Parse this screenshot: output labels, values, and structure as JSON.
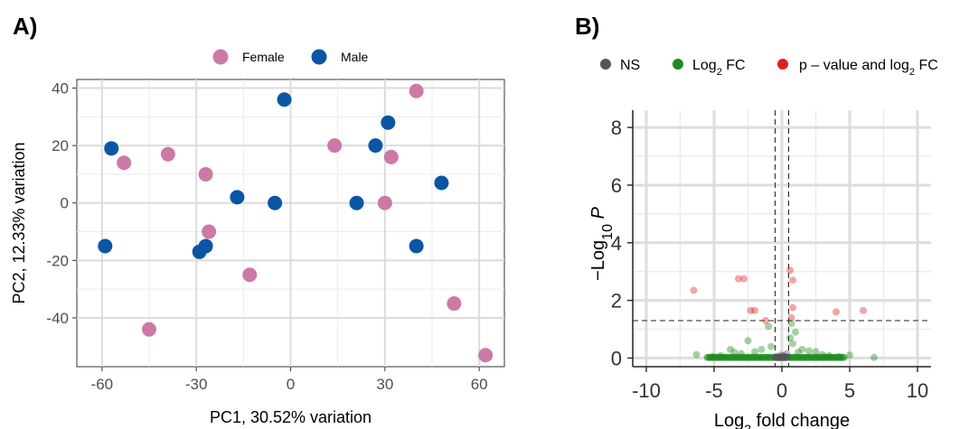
{
  "chart_data": [
    {
      "panel": "A)",
      "type": "scatter",
      "xlabel": "PC1, 30.52% variation",
      "ylabel": "PC2, 12.33% variation",
      "xlim": [
        -68,
        68
      ],
      "ylim": [
        -57,
        43
      ],
      "xticks": [
        -60,
        -30,
        0,
        30,
        60
      ],
      "yticks": [
        40,
        20,
        0,
        -20,
        -40
      ],
      "grid": true,
      "legend_position": "top",
      "series": [
        {
          "name": "Female",
          "color": "#CC79A7",
          "points": [
            [
              -53,
              14
            ],
            [
              -39,
              17
            ],
            [
              -27,
              10
            ],
            [
              -26,
              -10
            ],
            [
              -45,
              -44
            ],
            [
              -13,
              -25
            ],
            [
              14,
              20
            ],
            [
              30,
              0
            ],
            [
              32,
              16
            ],
            [
              40,
              39
            ],
            [
              52,
              -35
            ],
            [
              62,
              -53
            ]
          ]
        },
        {
          "name": "Male",
          "color": "#0A56A5",
          "points": [
            [
              -57,
              19
            ],
            [
              -59,
              -15
            ],
            [
              -29,
              -17
            ],
            [
              -27,
              -15
            ],
            [
              -17,
              2
            ],
            [
              -5,
              0
            ],
            [
              -2,
              36
            ],
            [
              21,
              0
            ],
            [
              27,
              20
            ],
            [
              31,
              28
            ],
            [
              40,
              -15
            ],
            [
              48,
              7
            ]
          ]
        }
      ]
    },
    {
      "panel": "B)",
      "type": "scatter",
      "xlabel": "Log2 fold change",
      "ylabel": "−Log10 P",
      "xlim": [
        -11,
        11
      ],
      "ylim": [
        -0.3,
        8.6
      ],
      "xticks": [
        -10,
        -5,
        0,
        5,
        10
      ],
      "yticks": [
        0,
        2,
        4,
        6,
        8
      ],
      "vlines": [
        -0.5,
        0.5
      ],
      "hline": 1.3,
      "grid": true,
      "legend_position": "top",
      "series": [
        {
          "name": "NS",
          "color": "#555555",
          "points": [
            [
              -0.4,
              0.05
            ],
            [
              -0.2,
              0.02
            ],
            [
              0,
              0.03
            ],
            [
              0.2,
              0.05
            ],
            [
              0.35,
              0.15
            ],
            [
              -0.1,
              0.1
            ],
            [
              0.1,
              0.08
            ]
          ]
        },
        {
          "name": "Log2 FC",
          "color": "#1E8A1E",
          "points": [
            [
              -6.3,
              0.12
            ],
            [
              -5.1,
              0.05
            ],
            [
              -4.5,
              0.08
            ],
            [
              -3.8,
              0.3
            ],
            [
              -3.5,
              0.2
            ],
            [
              -3,
              0.15
            ],
            [
              -2.5,
              0.6
            ],
            [
              -2,
              0.22
            ],
            [
              -1.5,
              0.3
            ],
            [
              -1,
              1.1
            ],
            [
              -0.8,
              0.4
            ],
            [
              0.6,
              0.7
            ],
            [
              0.7,
              1.2
            ],
            [
              0.8,
              0.5
            ],
            [
              1,
              0.9
            ],
            [
              1.2,
              0.2
            ],
            [
              1.5,
              0.3
            ],
            [
              2,
              0.25
            ],
            [
              2.5,
              0.22
            ],
            [
              3,
              0.12
            ],
            [
              3.5,
              0.08
            ],
            [
              4.2,
              0.05
            ],
            [
              5,
              0.1
            ],
            [
              6.8,
              0.02
            ]
          ]
        },
        {
          "name": "p – value and log2 FC",
          "color": "#E02020",
          "points": [
            [
              -6.5,
              2.35
            ],
            [
              -3.2,
              2.75
            ],
            [
              -2.8,
              2.75
            ],
            [
              -2.3,
              1.65
            ],
            [
              -2.0,
              1.65
            ],
            [
              -1.2,
              1.3
            ],
            [
              0.6,
              3.05
            ],
            [
              0.8,
              2.7
            ],
            [
              0.8,
              1.75
            ],
            [
              0.7,
              1.4
            ],
            [
              4,
              1.6
            ],
            [
              6,
              1.65
            ]
          ]
        }
      ]
    }
  ],
  "text": {
    "panelA_label": "A)",
    "panelB_label": "B)",
    "legendA": [
      "Female",
      "Male"
    ],
    "legendB": [
      "NS",
      "Log",
      "2",
      " FC",
      "p – value and log",
      "2",
      " FC"
    ],
    "xlabelB": [
      "Log",
      "2",
      " fold change"
    ],
    "ylabelB": [
      "−Log",
      "10",
      " P"
    ]
  }
}
